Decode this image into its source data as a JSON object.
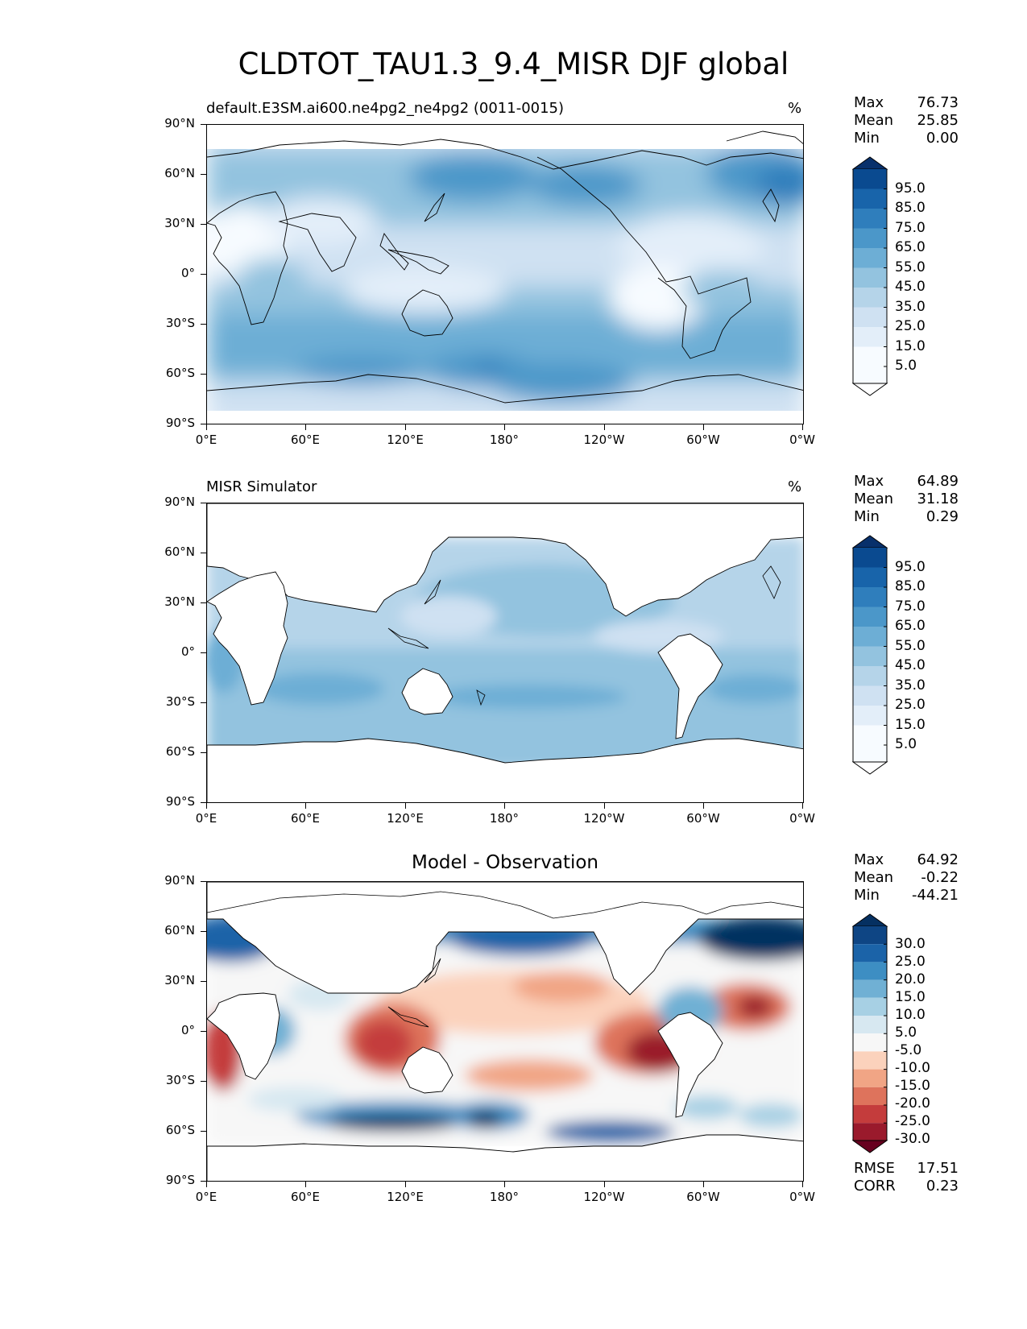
{
  "title": "CLDTOT_TAU1.3_9.4_MISR DJF global",
  "axes": {
    "lat_labels": [
      "90°N",
      "60°N",
      "30°N",
      "0°",
      "30°S",
      "60°S",
      "90°S"
    ],
    "lon_labels": [
      "0°E",
      "60°E",
      "120°E",
      "180°",
      "120°W",
      "60°W",
      "0°W"
    ]
  },
  "panels": [
    {
      "title": "default.E3SM.ai600.ne4pg2_ne4pg2 (0011-0015)",
      "units": "%",
      "stats": [
        {
          "label": "Max",
          "value": "76.73"
        },
        {
          "label": "Mean",
          "value": "25.85"
        },
        {
          "label": "Min",
          "value": "0.00"
        }
      ],
      "colorbar_labels": [
        "95.0",
        "85.0",
        "75.0",
        "65.0",
        "55.0",
        "45.0",
        "35.0",
        "25.0",
        "15.0",
        "5.0"
      ]
    },
    {
      "title": "MISR Simulator",
      "units": "%",
      "stats": [
        {
          "label": "Max",
          "value": "64.89"
        },
        {
          "label": "Mean",
          "value": "31.18"
        },
        {
          "label": "Min",
          "value": "0.29"
        }
      ],
      "colorbar_labels": [
        "95.0",
        "85.0",
        "75.0",
        "65.0",
        "55.0",
        "45.0",
        "35.0",
        "25.0",
        "15.0",
        "5.0"
      ]
    },
    {
      "title": "Model - Observation",
      "units": "",
      "stats": [
        {
          "label": "Max",
          "value": "64.92"
        },
        {
          "label": "Mean",
          "value": "-0.22"
        },
        {
          "label": "Min",
          "value": "-44.21"
        }
      ],
      "colorbar_labels": [
        "30.0",
        "25.0",
        "20.0",
        "15.0",
        "10.0",
        "5.0",
        "-5.0",
        "-10.0",
        "-15.0",
        "-20.0",
        "-25.0",
        "-30.0"
      ],
      "metrics": [
        {
          "label": "RMSE",
          "value": "17.51"
        },
        {
          "label": "CORR",
          "value": "0.23"
        }
      ]
    }
  ],
  "colors": {
    "blues": [
      "#f7fbff",
      "#e3eef9",
      "#cfe1f2",
      "#b5d4e9",
      "#93c3df",
      "#6daed5",
      "#4b97c9",
      "#2f7ebc",
      "#1864aa",
      "#0a4a90",
      "#08306b"
    ],
    "diverging": [
      "#67001f",
      "#9a1a2c",
      "#c43c3c",
      "#de735c",
      "#f1a585",
      "#fbd2bc",
      "#f7f7f7",
      "#d7e8f1",
      "#a7d0e4",
      "#70b0d4",
      "#3d8ec3",
      "#1b63a8",
      "#053061"
    ]
  }
}
